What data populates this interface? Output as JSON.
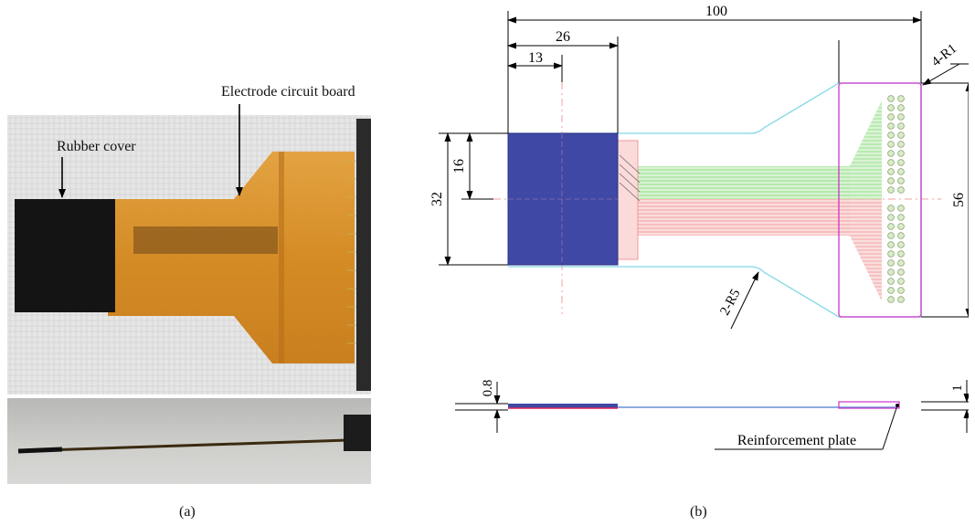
{
  "panel_a": {
    "caption": "(a)",
    "labels": {
      "rubber_cover": "Rubber cover",
      "electrode_board": "Electrode circuit board"
    }
  },
  "panel_b": {
    "caption": "(b)",
    "dimensions": {
      "total_length": "100",
      "cover_length": "26",
      "cover_half_length": "13",
      "corner_radius": "4-R1",
      "cover_width": "32",
      "cover_half_width": "16",
      "end_width": "56",
      "fillet_radius": "2-R5",
      "board_thickness": "0.8",
      "plate_thickness": "1"
    },
    "labels": {
      "reinforcement_plate": "Reinforcement plate"
    }
  },
  "colors": {
    "rubber_blue": "#3f48a4",
    "outline_cyan": "#7fd6e6",
    "plate_magenta": "#cc33cc",
    "trace_green": "#a8e6a0",
    "trace_red": "#f4a3a3",
    "pcb_orange": "#d98d1c",
    "rubber_black": "#141414"
  }
}
